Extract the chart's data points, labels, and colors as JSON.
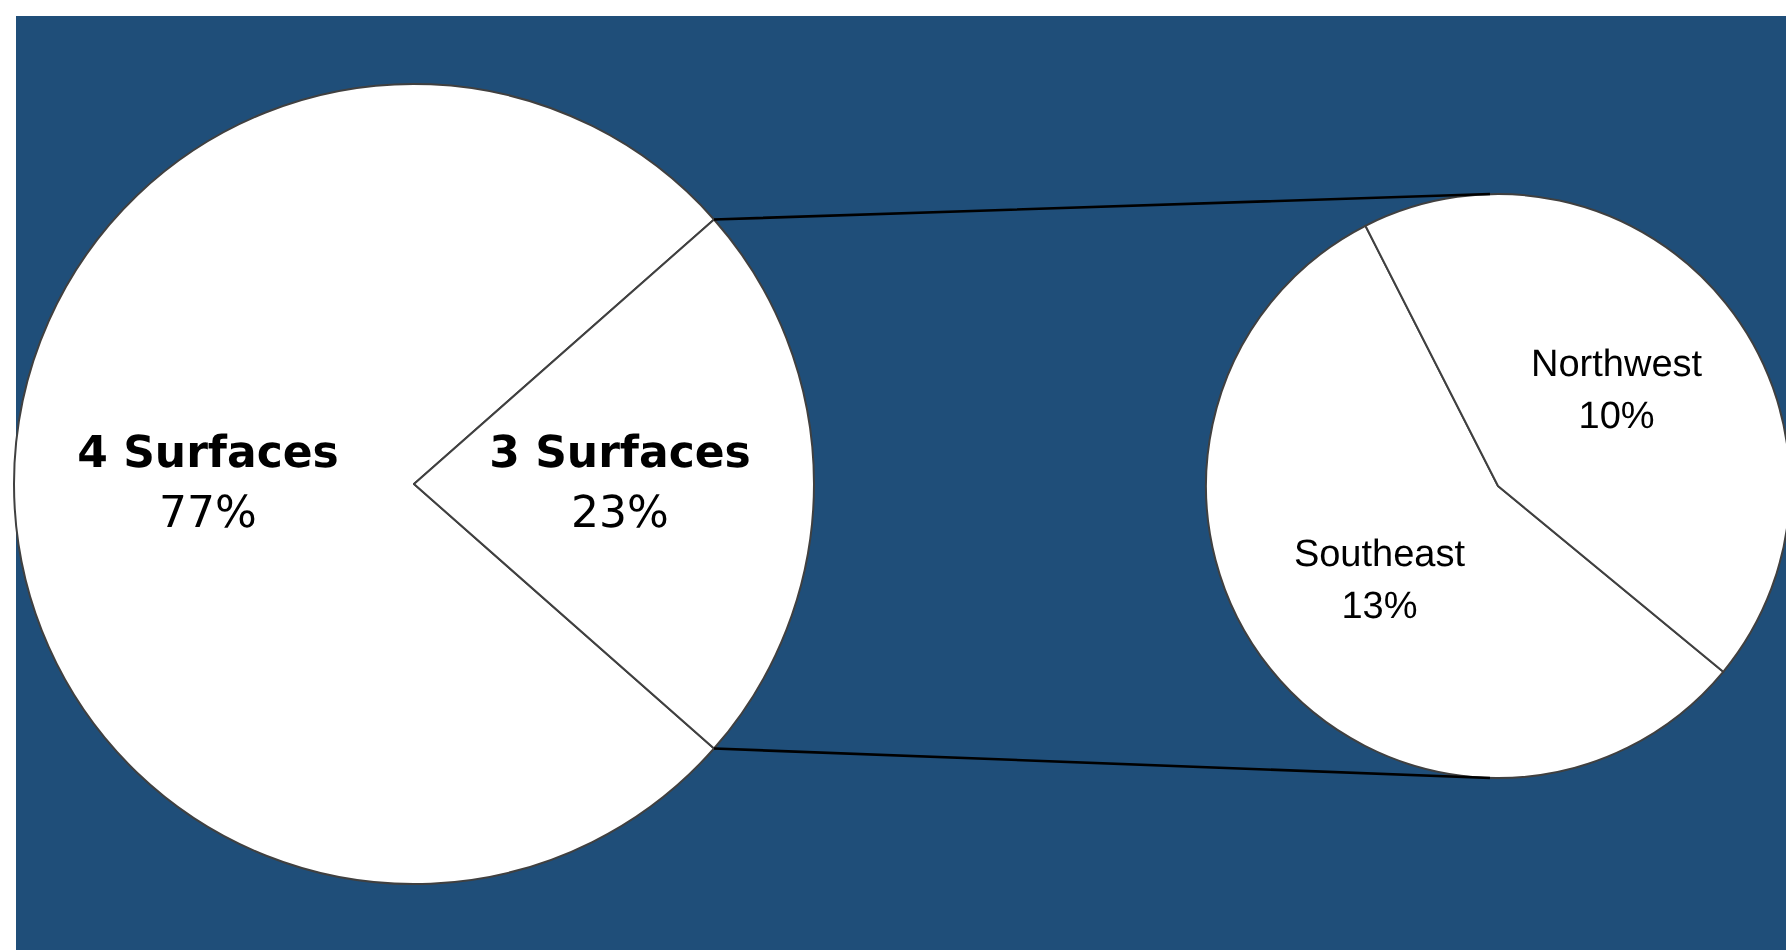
{
  "chart_data": [
    {
      "type": "pie",
      "categories": [
        "4 Surfaces",
        "3 Surfaces"
      ],
      "values": [
        77,
        23
      ],
      "colors": [
        "#ffffff",
        "#ffffff"
      ],
      "value_labels": [
        "77%",
        "23%"
      ]
    },
    {
      "type": "pie",
      "categories": [
        "Southeast",
        "Northwest"
      ],
      "values": [
        13,
        10
      ],
      "colors": [
        "#ffffff",
        "#ffffff"
      ],
      "value_labels": [
        "13%",
        "10%"
      ]
    }
  ]
}
